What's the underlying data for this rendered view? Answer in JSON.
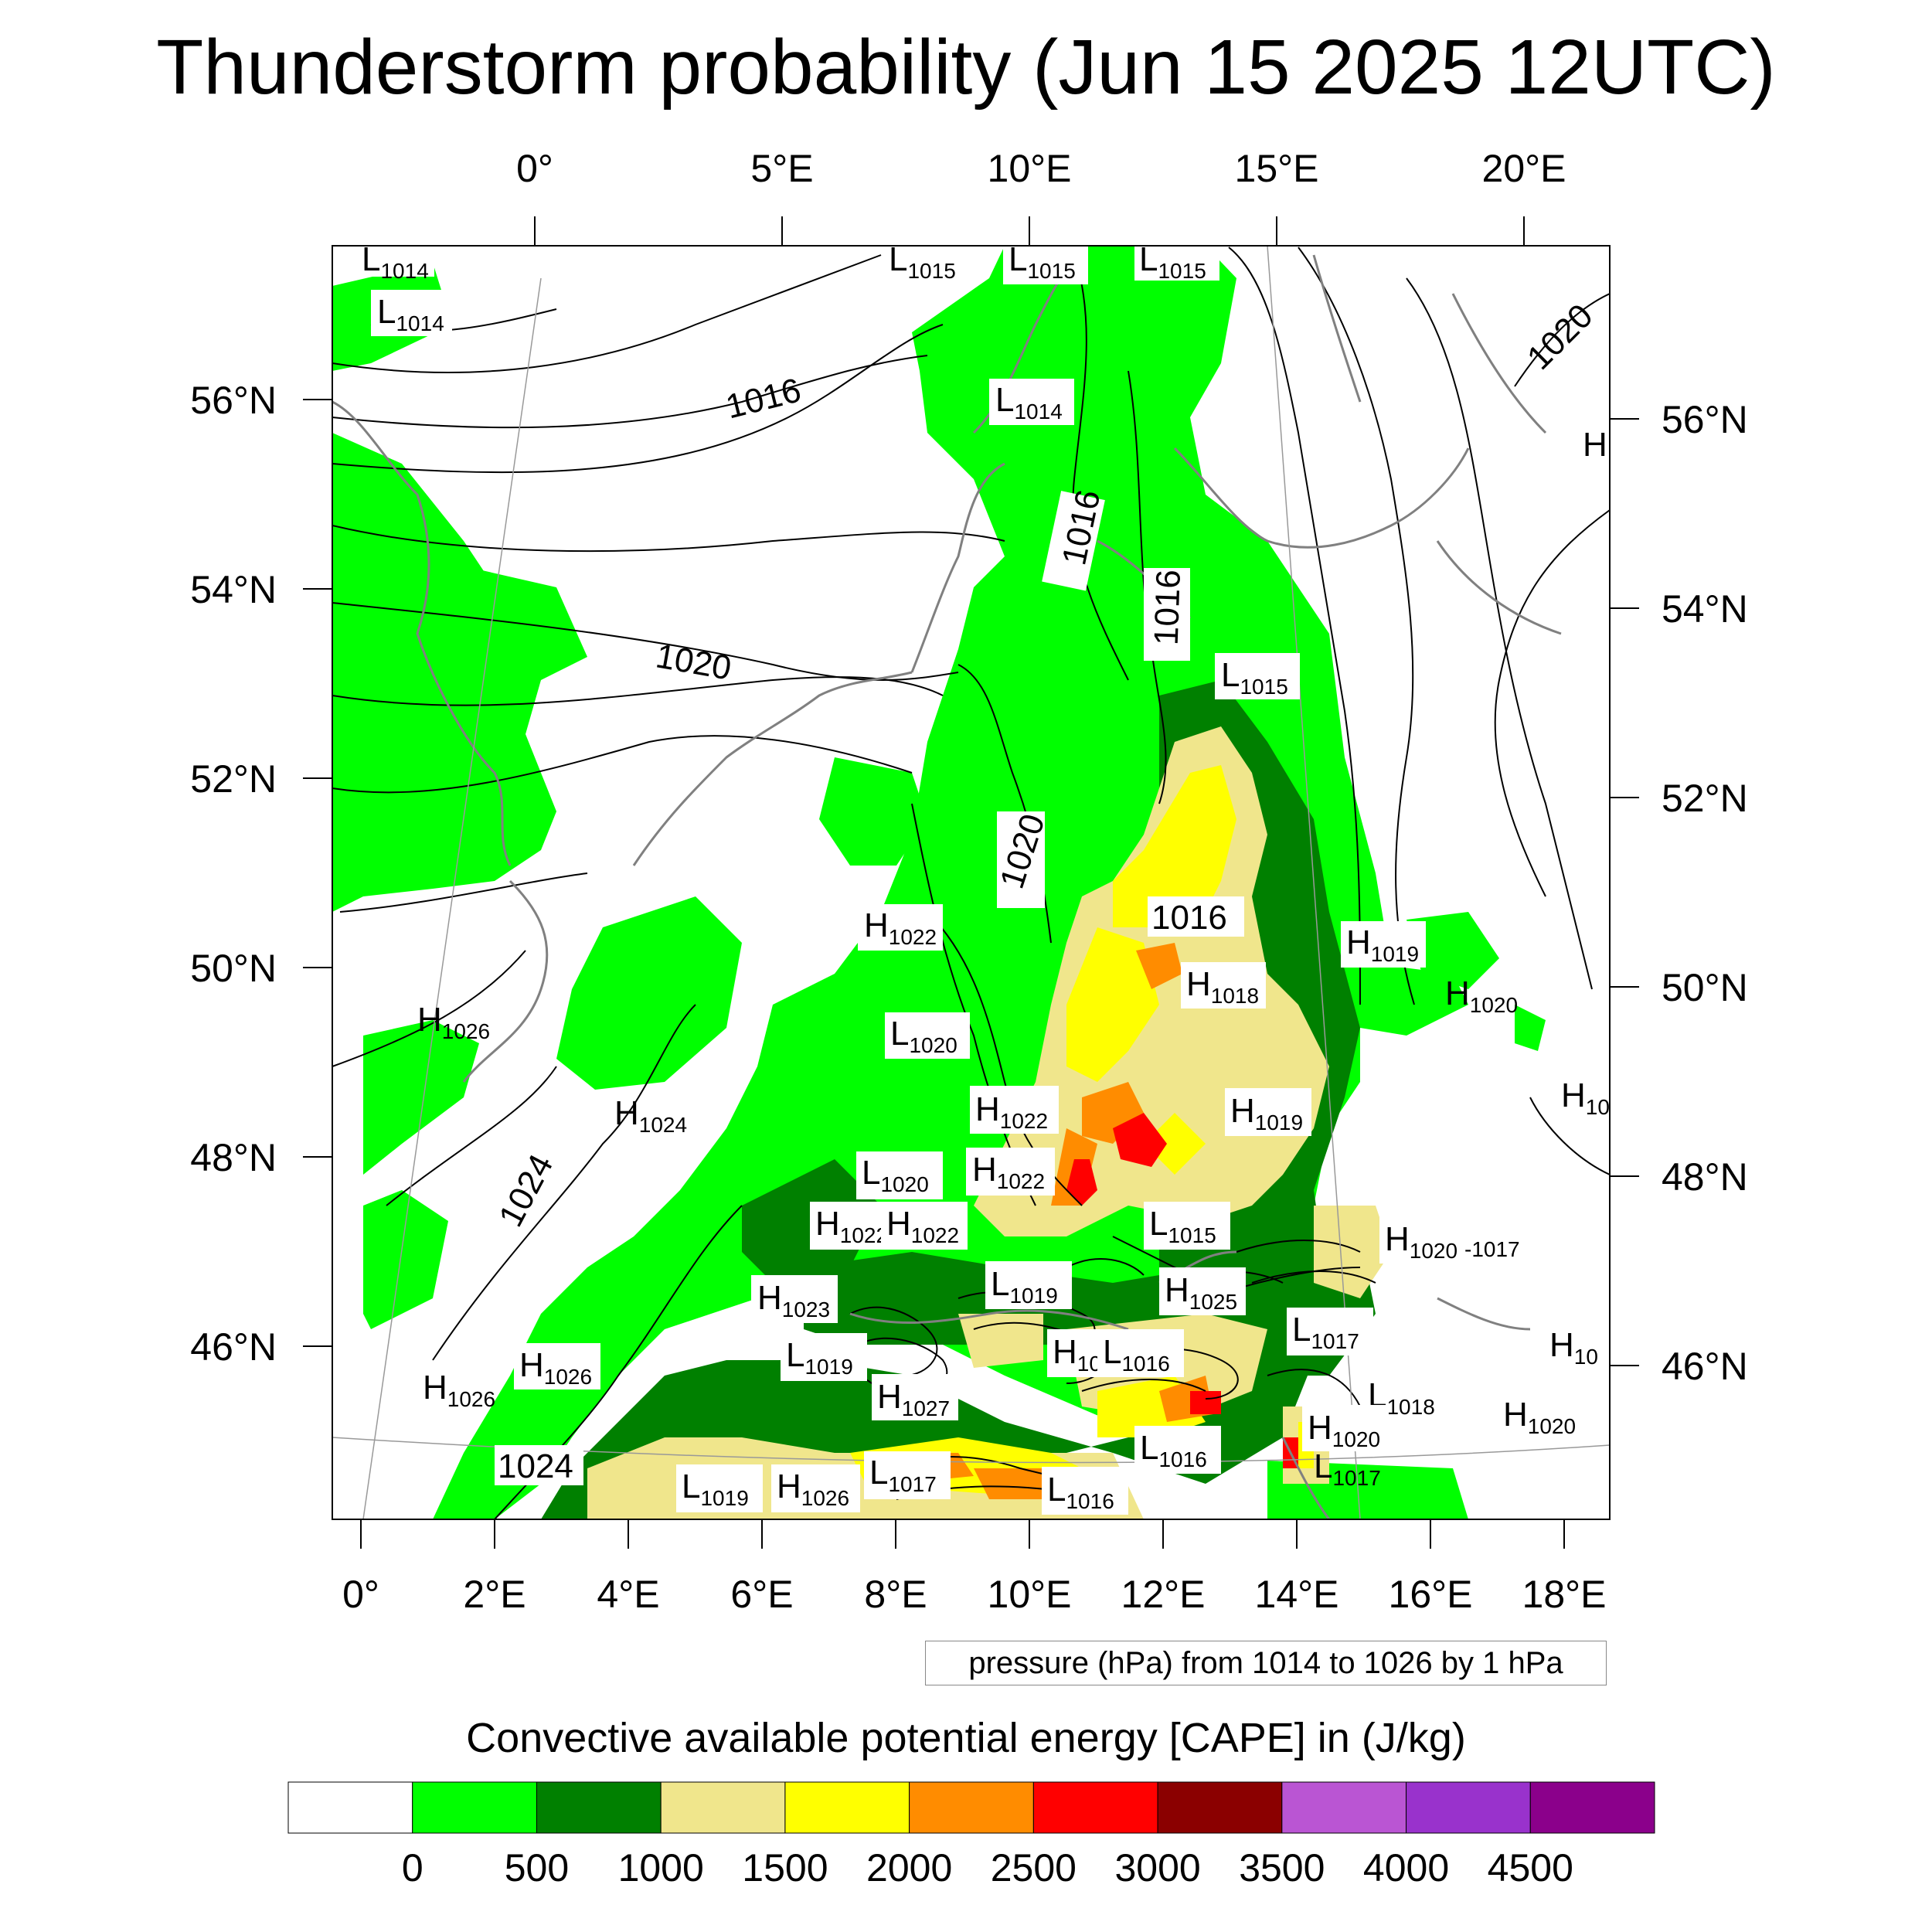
{
  "title": "Thunderstorm probability (Jun 15 2025 12UTC)",
  "top_lon_labels": [
    "0°",
    "5°E",
    "10°E",
    "15°E",
    "20°E"
  ],
  "bottom_lon_labels": [
    "0°",
    "2°E",
    "4°E",
    "6°E",
    "8°E",
    "10°E",
    "12°E",
    "14°E",
    "16°E",
    "18°E"
  ],
  "left_lat_labels": [
    "56°N",
    "54°N",
    "52°N",
    "50°N",
    "48°N",
    "46°N"
  ],
  "right_lat_labels": [
    "56°N",
    "54°N",
    "52°N",
    "50°N",
    "48°N",
    "46°N"
  ],
  "pressure_note": "pressure (hPa) from 1014 to 1026 by 1 hPa",
  "colorbar": {
    "title": "Convective available potential energy [CAPE] in (J/kg)",
    "colors": [
      "#ffffff",
      "#00ff00",
      "#008000",
      "#f0e68c",
      "#ffff00",
      "#ff8c00",
      "#ff0000",
      "#8b0000",
      "#ba55d3",
      "#9932cc",
      "#8b008b"
    ],
    "labels": [
      "0",
      "500",
      "1000",
      "1500",
      "2000",
      "2500",
      "3000",
      "3500",
      "4000",
      "4500"
    ]
  },
  "pressure_centers": [
    {
      "t": "L",
      "v": "1014"
    },
    {
      "t": "L",
      "v": "1014"
    },
    {
      "t": "L",
      "v": "1015"
    },
    {
      "t": "L",
      "v": "1015"
    },
    {
      "t": "L",
      "v": "1015"
    },
    {
      "t": "L",
      "v": "1014"
    },
    {
      "t": "H",
      "v": ""
    },
    {
      "t": "L",
      "v": "1015"
    },
    {
      "t": "H",
      "v": "1022"
    },
    {
      "t": "H",
      "v": "1019"
    },
    {
      "t": "H",
      "v": "1020"
    },
    {
      "t": "H",
      "v": "1018"
    },
    {
      "t": "H",
      "v": "1026"
    },
    {
      "t": "L",
      "v": "1020"
    },
    {
      "t": "H",
      "v": "1024"
    },
    {
      "t": "H",
      "v": "1022"
    },
    {
      "t": "H",
      "v": "1019"
    },
    {
      "t": "H",
      "v": "1022"
    },
    {
      "t": "L",
      "v": "1020"
    },
    {
      "t": "H",
      "v": "1022"
    },
    {
      "t": "H",
      "v": "1022"
    },
    {
      "t": "L",
      "v": "1015"
    },
    {
      "t": "H",
      "v": "1020"
    },
    {
      "t": "L",
      "v": "1019"
    },
    {
      "t": "H",
      "v": "1025"
    },
    {
      "t": "H",
      "v": "1023"
    },
    {
      "t": "L",
      "v": "1017"
    },
    {
      "t": "L",
      "v": "1019"
    },
    {
      "t": "H",
      "v": "10"
    },
    {
      "t": "L",
      "v": "1016"
    },
    {
      "t": "H",
      "v": "1026"
    },
    {
      "t": "H",
      "v": "1026"
    },
    {
      "t": "H",
      "v": "1027"
    },
    {
      "t": "L",
      "v": "1018"
    },
    {
      "t": "H",
      "v": "1020"
    },
    {
      "t": "H",
      "v": "1020"
    },
    {
      "t": "L",
      "v": "1016"
    },
    {
      "t": "L",
      "v": "1017"
    },
    {
      "t": "L",
      "v": "1017"
    },
    {
      "t": "L",
      "v": "1019"
    },
    {
      "t": "H",
      "v": "1026"
    },
    {
      "t": "L",
      "v": "1016"
    },
    {
      "t": "H",
      "v": "10"
    },
    {
      "t": "H",
      "v": "10"
    }
  ],
  "contour_labels": [
    "1016",
    "1020",
    "1016",
    "1016",
    "1020",
    "1016",
    "1020",
    "1024",
    "1024",
    "-1017"
  ]
}
